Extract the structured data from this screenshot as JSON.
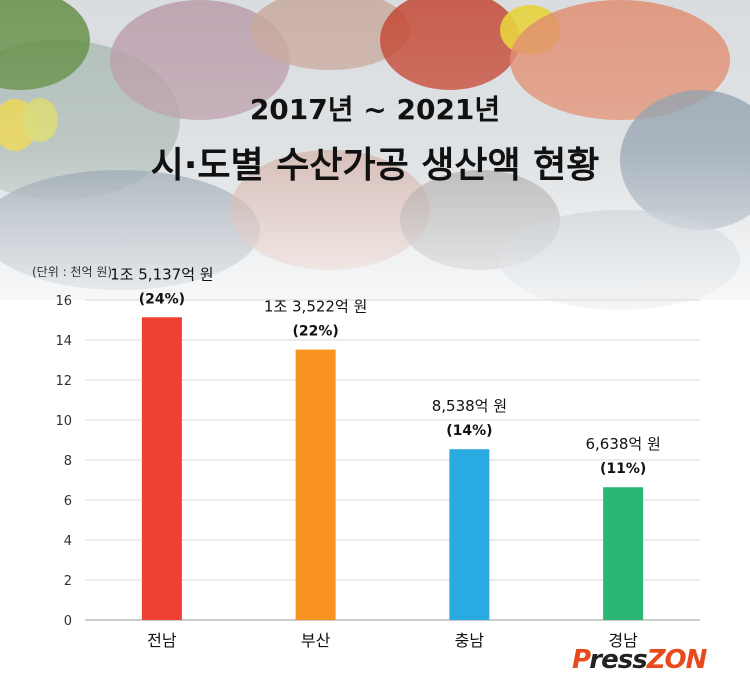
{
  "title_line1": "2017년 ~ 2021년",
  "title_line2": "시·도별 수산가공 생산액 현황",
  "logo": {
    "p": "P",
    "ress": "ress",
    "zon": "ZON"
  },
  "chart_data": {
    "type": "bar",
    "unit_label": "(단위 : 천억 원)",
    "categories": [
      "전남",
      "부산",
      "충남",
      "경남"
    ],
    "values": [
      15.137,
      13.522,
      8.538,
      6.638
    ],
    "value_labels": [
      "1조 5,137억 원",
      "1조 3,522억 원",
      "8,538억 원",
      "6,638억 원"
    ],
    "percent_labels": [
      "(24%)",
      "(22%)",
      "(14%)",
      "(11%)"
    ],
    "colors": [
      "#ef4133",
      "#f7931e",
      "#29abe2",
      "#2bb673"
    ],
    "yticks": [
      0,
      2,
      4,
      6,
      8,
      10,
      12,
      14,
      16
    ],
    "ylim": [
      0,
      16
    ],
    "grid": true
  }
}
